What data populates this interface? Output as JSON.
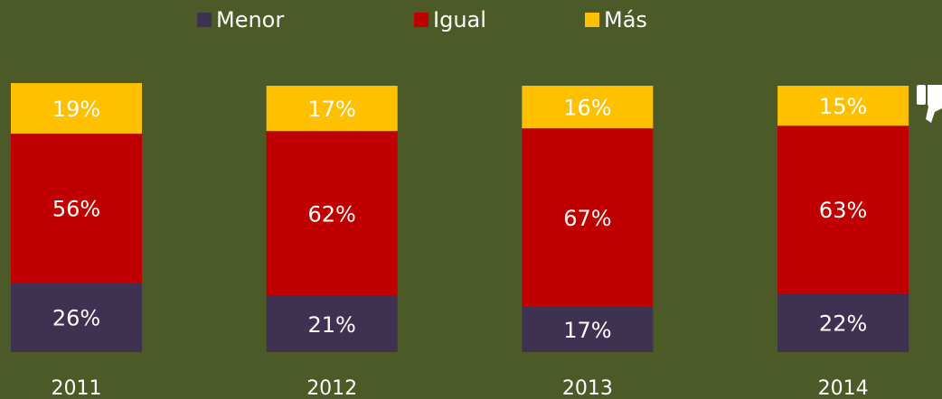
{
  "chart_data": {
    "type": "stacked_bar",
    "categories": [
      "2011",
      "2012",
      "2013",
      "2014"
    ],
    "series": [
      {
        "name": "Menor",
        "color": "#3f3151",
        "values": [
          26,
          21,
          17,
          22
        ],
        "value_labels": [
          "26%",
          "21%",
          "17%",
          "22%"
        ]
      },
      {
        "name": "Igual",
        "color": "#c00000",
        "values": [
          56,
          62,
          67,
          63
        ],
        "value_labels": [
          "56%",
          "62%",
          "67%",
          "63%"
        ]
      },
      {
        "name": "Más",
        "color": "#ffc000",
        "values": [
          19,
          17,
          16,
          15
        ],
        "value_labels": [
          "19%",
          "17%",
          "16%",
          "15%"
        ]
      }
    ]
  }
}
